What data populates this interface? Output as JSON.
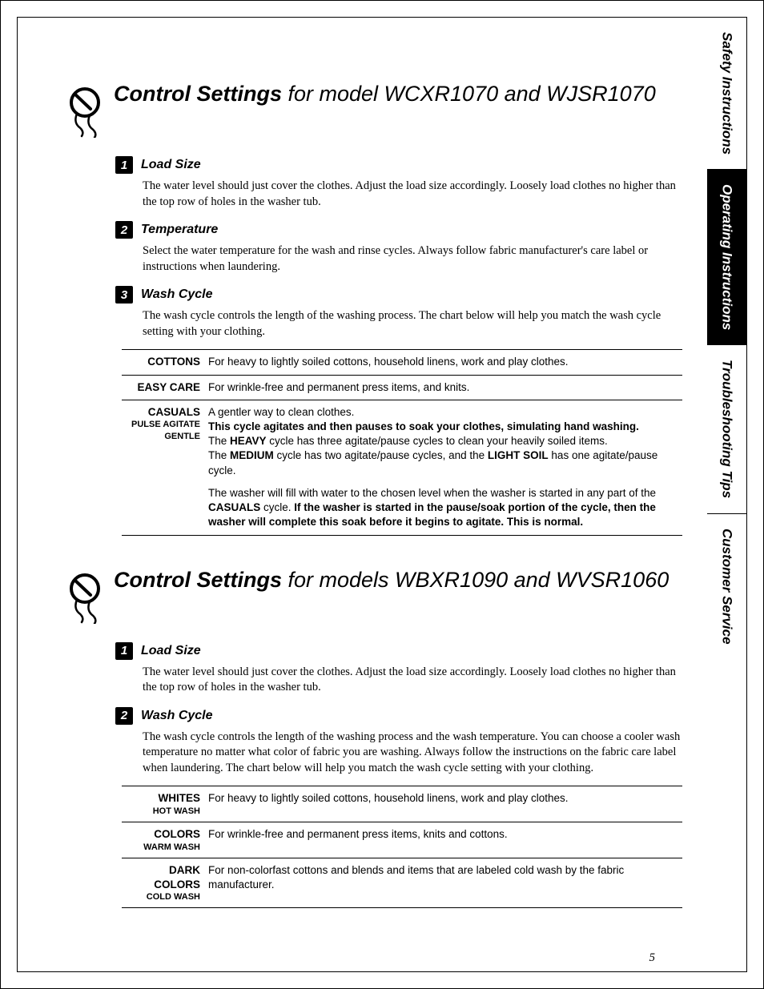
{
  "page_number": "5",
  "tabs": [
    {
      "label": "Safety Instructions",
      "style": "light"
    },
    {
      "label": "Operating Instructions",
      "style": "dark"
    },
    {
      "label": "Troubleshooting Tips",
      "style": "light"
    },
    {
      "label": "Customer Service",
      "style": "light"
    }
  ],
  "sections": [
    {
      "title_bold": "Control Settings",
      "title_rest": " for model WCXR1070 and WJSR1070",
      "items": [
        {
          "num": "1",
          "title": "Load Size",
          "body": "The water level should just cover the clothes. Adjust the load size accordingly. Loosely load clothes no higher than the top row of holes in the washer tub."
        },
        {
          "num": "2",
          "title": "Temperature",
          "body": "Select the water temperature for the wash and rinse cycles. Always follow fabric manufacturer's care label or instructions when laundering."
        },
        {
          "num": "3",
          "title": "Wash Cycle",
          "body": "The wash cycle controls the length of the washing process. The chart below will help you match the wash cycle setting with your clothing.",
          "table": [
            {
              "label": "COTTONS",
              "desc_plain": "For heavy to lightly soiled cottons, household linens, work and play clothes."
            },
            {
              "label": "EASY CARE",
              "desc_plain": "For wrinkle-free and permanent press items, and knits."
            },
            {
              "label": "CASUALS",
              "label_sub1": "PULSE AGITATE",
              "label_sub2": "GENTLE",
              "desc_html": "A gentler way to clean clothes.<br><span class=\"b\">This cycle agitates and then pauses to soak your clothes, simulating hand washing.</span><br>The <span class=\"b\">HEAVY</span> cycle has three agitate/pause cycles to clean your heavily soiled items.<p>The <span class=\"b\">MEDIUM</span> cycle has two agitate/pause cycles, and the <span class=\"b\">LIGHT SOIL</span> has one agitate/pause cycle.</p><p>The washer will fill with water to the chosen level when the washer is started in any part of the <span class=\"b\">CASUALS</span> cycle. <span class=\"b\">If the washer is started in the pause/soak portion of the cycle, then the washer will complete this soak before it begins to agitate. This is normal.</span></p>"
            }
          ]
        }
      ]
    },
    {
      "title_bold": "Control Settings",
      "title_rest": " for models WBXR1090 and WVSR1060",
      "items": [
        {
          "num": "1",
          "title": "Load Size",
          "body": "The water level should just cover the clothes. Adjust the load size accordingly. Loosely load clothes no higher than the top row of holes in the washer tub."
        },
        {
          "num": "2",
          "title": "Wash Cycle",
          "body": "The wash cycle controls the length of the washing process and the wash temperature. You can choose a cooler wash temperature no matter what color of fabric you are washing. Always follow the instructions on the fabric care label when laundering. The chart below will help you match the wash cycle setting with your clothing.",
          "table": [
            {
              "label": "WHITES",
              "label_sub1": "HOT WASH",
              "desc_plain": "For heavy to lightly soiled cottons, household linens, work and play clothes."
            },
            {
              "label": "COLORS",
              "label_sub1": "WARM WASH",
              "desc_plain": "For wrinkle-free and permanent press items, knits and cottons."
            },
            {
              "label": "DARK COLORS",
              "label_sub1": "COLD WASH",
              "desc_plain": "For non-colorfast cottons and blends and items that are labeled cold wash by the fabric manufacturer."
            }
          ]
        }
      ]
    }
  ]
}
